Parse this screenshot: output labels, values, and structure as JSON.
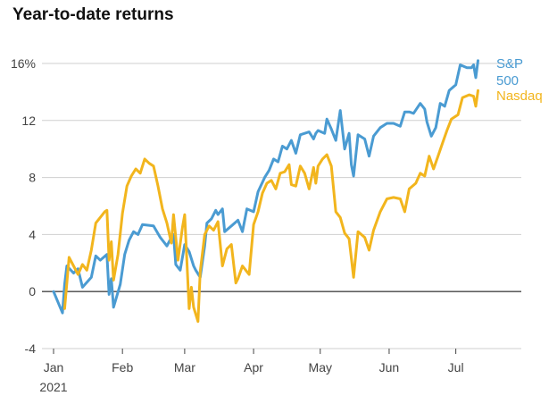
{
  "chart_data": {
    "type": "line",
    "title": "Year-to-date returns",
    "xlabel": "",
    "ylabel": "",
    "ylim": [
      -4,
      16
    ],
    "y_ticks": [
      {
        "value": 16,
        "label": "16%"
      },
      {
        "value": 12,
        "label": "12"
      },
      {
        "value": 8,
        "label": "8"
      },
      {
        "value": 4,
        "label": "4"
      },
      {
        "value": 0,
        "label": "0"
      },
      {
        "value": -4,
        "label": "-4"
      }
    ],
    "x_range": [
      "2021-01-01",
      "2021-07-14"
    ],
    "x_ticks": [
      {
        "date": "2021-01-01",
        "label": "Jan",
        "sublabel": "2021"
      },
      {
        "date": "2021-02-01",
        "label": "Feb"
      },
      {
        "date": "2021-03-01",
        "label": "Mar"
      },
      {
        "date": "2021-04-01",
        "label": "Apr"
      },
      {
        "date": "2021-05-01",
        "label": "May"
      },
      {
        "date": "2021-06-01",
        "label": "Jun"
      },
      {
        "date": "2021-07-01",
        "label": "Jul"
      }
    ],
    "grid": true,
    "colors": {
      "sp500": "#4a9bd2",
      "nasdaq": "#f2b51d",
      "grid": "#cfcfcf",
      "zero": "#444444",
      "axis_text": "#444444"
    },
    "series": [
      {
        "key": "sp500",
        "name": "S&P 500",
        "label_lines": [
          "S&P",
          "500"
        ],
        "color": "#4a9bd2",
        "data": [
          [
            "2021-01-01",
            0.0
          ],
          [
            "2021-01-05",
            -1.5
          ],
          [
            "2021-01-06",
            0.5
          ],
          [
            "2021-01-07",
            1.8
          ],
          [
            "2021-01-10",
            1.3
          ],
          [
            "2021-01-12",
            1.6
          ],
          [
            "2021-01-14",
            0.3
          ],
          [
            "2021-01-18",
            1.0
          ],
          [
            "2021-01-20",
            2.5
          ],
          [
            "2021-01-22",
            2.2
          ],
          [
            "2021-01-25",
            2.6
          ],
          [
            "2021-01-26",
            -0.2
          ],
          [
            "2021-01-27",
            0.9
          ],
          [
            "2021-01-28",
            -1.1
          ],
          [
            "2021-01-31",
            0.5
          ],
          [
            "2021-02-02",
            2.6
          ],
          [
            "2021-02-04",
            3.6
          ],
          [
            "2021-02-06",
            4.2
          ],
          [
            "2021-02-08",
            4.0
          ],
          [
            "2021-02-10",
            4.7
          ],
          [
            "2021-02-15",
            4.6
          ],
          [
            "2021-02-18",
            3.8
          ],
          [
            "2021-02-21",
            3.2
          ],
          [
            "2021-02-23",
            3.8
          ],
          [
            "2021-02-24",
            4.0
          ],
          [
            "2021-02-25",
            1.9
          ],
          [
            "2021-02-27",
            1.5
          ],
          [
            "2021-03-01",
            3.3
          ],
          [
            "2021-03-03",
            2.8
          ],
          [
            "2021-03-05",
            1.8
          ],
          [
            "2021-03-06",
            1.5
          ],
          [
            "2021-03-08",
            1.0
          ],
          [
            "2021-03-10",
            3.2
          ],
          [
            "2021-03-11",
            4.8
          ],
          [
            "2021-03-13",
            5.1
          ],
          [
            "2021-03-15",
            5.7
          ],
          [
            "2021-03-16",
            5.4
          ],
          [
            "2021-03-18",
            5.8
          ],
          [
            "2021-03-19",
            4.2
          ],
          [
            "2021-03-22",
            4.6
          ],
          [
            "2021-03-25",
            5.0
          ],
          [
            "2021-03-27",
            4.2
          ],
          [
            "2021-03-29",
            5.8
          ],
          [
            "2021-04-01",
            5.6
          ],
          [
            "2021-04-03",
            7.0
          ],
          [
            "2021-04-06",
            8.0
          ],
          [
            "2021-04-08",
            8.5
          ],
          [
            "2021-04-10",
            9.3
          ],
          [
            "2021-04-12",
            9.1
          ],
          [
            "2021-04-14",
            10.2
          ],
          [
            "2021-04-16",
            10.0
          ],
          [
            "2021-04-18",
            10.6
          ],
          [
            "2021-04-20",
            9.7
          ],
          [
            "2021-04-22",
            11.0
          ],
          [
            "2021-04-24",
            11.1
          ],
          [
            "2021-04-26",
            11.2
          ],
          [
            "2021-04-28",
            10.7
          ],
          [
            "2021-04-29",
            11.1
          ],
          [
            "2021-04-30",
            11.3
          ],
          [
            "2021-05-03",
            11.1
          ],
          [
            "2021-05-04",
            12.1
          ],
          [
            "2021-05-06",
            11.4
          ],
          [
            "2021-05-08",
            10.6
          ],
          [
            "2021-05-10",
            12.7
          ],
          [
            "2021-05-12",
            10.0
          ],
          [
            "2021-05-14",
            11.1
          ],
          [
            "2021-05-15",
            8.9
          ],
          [
            "2021-05-16",
            8.1
          ],
          [
            "2021-05-18",
            11.0
          ],
          [
            "2021-05-21",
            10.7
          ],
          [
            "2021-05-23",
            9.5
          ],
          [
            "2021-05-25",
            10.9
          ],
          [
            "2021-05-28",
            11.5
          ],
          [
            "2021-05-31",
            11.8
          ],
          [
            "2021-06-03",
            11.8
          ],
          [
            "2021-06-06",
            11.6
          ],
          [
            "2021-06-08",
            12.6
          ],
          [
            "2021-06-10",
            12.6
          ],
          [
            "2021-06-12",
            12.5
          ],
          [
            "2021-06-15",
            13.2
          ],
          [
            "2021-06-17",
            12.8
          ],
          [
            "2021-06-18",
            11.9
          ],
          [
            "2021-06-20",
            10.9
          ],
          [
            "2021-06-22",
            11.5
          ],
          [
            "2021-06-24",
            13.2
          ],
          [
            "2021-06-26",
            13.0
          ],
          [
            "2021-06-28",
            14.1
          ],
          [
            "2021-07-01",
            14.5
          ],
          [
            "2021-07-03",
            15.9
          ],
          [
            "2021-07-06",
            15.7
          ],
          [
            "2021-07-08",
            15.7
          ],
          [
            "2021-07-09",
            15.9
          ],
          [
            "2021-07-10",
            15.0
          ],
          [
            "2021-07-11",
            16.2
          ]
        ]
      },
      {
        "key": "nasdaq",
        "name": "Nasdaq",
        "label_lines": [
          "Nasdaq"
        ],
        "color": "#f2b51d",
        "data": [
          [
            "2021-01-06",
            -1.2
          ],
          [
            "2021-01-08",
            2.4
          ],
          [
            "2021-01-10",
            1.8
          ],
          [
            "2021-01-12",
            1.2
          ],
          [
            "2021-01-14",
            1.9
          ],
          [
            "2021-01-16",
            1.5
          ],
          [
            "2021-01-18",
            2.9
          ],
          [
            "2021-01-20",
            4.8
          ],
          [
            "2021-01-22",
            5.2
          ],
          [
            "2021-01-24",
            5.6
          ],
          [
            "2021-01-25",
            5.7
          ],
          [
            "2021-01-26",
            2.2
          ],
          [
            "2021-01-27",
            3.5
          ],
          [
            "2021-01-28",
            0.8
          ],
          [
            "2021-01-30",
            2.6
          ],
          [
            "2021-02-01",
            5.5
          ],
          [
            "2021-02-03",
            7.4
          ],
          [
            "2021-02-05",
            8.1
          ],
          [
            "2021-02-07",
            8.6
          ],
          [
            "2021-02-09",
            8.3
          ],
          [
            "2021-02-11",
            9.3
          ],
          [
            "2021-02-13",
            9.0
          ],
          [
            "2021-02-15",
            8.8
          ],
          [
            "2021-02-17",
            7.4
          ],
          [
            "2021-02-19",
            5.8
          ],
          [
            "2021-02-21",
            4.8
          ],
          [
            "2021-02-23",
            3.4
          ],
          [
            "2021-02-24",
            5.4
          ],
          [
            "2021-02-26",
            2.2
          ],
          [
            "2021-02-28",
            4.5
          ],
          [
            "2021-03-01",
            5.4
          ],
          [
            "2021-03-03",
            -1.2
          ],
          [
            "2021-03-04",
            0.3
          ],
          [
            "2021-03-05",
            -1.1
          ],
          [
            "2021-03-07",
            -2.1
          ],
          [
            "2021-03-08",
            1.4
          ],
          [
            "2021-03-10",
            4.0
          ],
          [
            "2021-03-12",
            4.6
          ],
          [
            "2021-03-14",
            4.3
          ],
          [
            "2021-03-16",
            4.9
          ],
          [
            "2021-03-18",
            1.8
          ],
          [
            "2021-03-20",
            3.0
          ],
          [
            "2021-03-22",
            3.3
          ],
          [
            "2021-03-24",
            0.6
          ],
          [
            "2021-03-25",
            0.9
          ],
          [
            "2021-03-27",
            1.8
          ],
          [
            "2021-03-29",
            1.4
          ],
          [
            "2021-03-30",
            1.2
          ],
          [
            "2021-04-01",
            4.7
          ],
          [
            "2021-04-03",
            5.6
          ],
          [
            "2021-04-05",
            6.9
          ],
          [
            "2021-04-07",
            7.6
          ],
          [
            "2021-04-09",
            7.8
          ],
          [
            "2021-04-11",
            7.2
          ],
          [
            "2021-04-13",
            8.3
          ],
          [
            "2021-04-15",
            8.4
          ],
          [
            "2021-04-17",
            8.9
          ],
          [
            "2021-04-18",
            7.5
          ],
          [
            "2021-04-20",
            7.4
          ],
          [
            "2021-04-22",
            8.8
          ],
          [
            "2021-04-24",
            8.3
          ],
          [
            "2021-04-26",
            7.2
          ],
          [
            "2021-04-28",
            8.7
          ],
          [
            "2021-04-29",
            7.6
          ],
          [
            "2021-04-30",
            8.8
          ],
          [
            "2021-05-02",
            9.3
          ],
          [
            "2021-05-04",
            9.6
          ],
          [
            "2021-05-06",
            8.8
          ],
          [
            "2021-05-08",
            5.6
          ],
          [
            "2021-05-10",
            5.2
          ],
          [
            "2021-05-12",
            4.1
          ],
          [
            "2021-05-14",
            3.7
          ],
          [
            "2021-05-16",
            1.0
          ],
          [
            "2021-05-18",
            4.2
          ],
          [
            "2021-05-21",
            3.8
          ],
          [
            "2021-05-23",
            2.9
          ],
          [
            "2021-05-25",
            4.3
          ],
          [
            "2021-05-28",
            5.6
          ],
          [
            "2021-05-31",
            6.5
          ],
          [
            "2021-06-03",
            6.6
          ],
          [
            "2021-06-06",
            6.5
          ],
          [
            "2021-06-08",
            5.6
          ],
          [
            "2021-06-10",
            7.2
          ],
          [
            "2021-06-13",
            7.6
          ],
          [
            "2021-06-15",
            8.3
          ],
          [
            "2021-06-17",
            8.1
          ],
          [
            "2021-06-19",
            9.5
          ],
          [
            "2021-06-21",
            8.6
          ],
          [
            "2021-06-23",
            9.5
          ],
          [
            "2021-06-25",
            10.4
          ],
          [
            "2021-06-27",
            11.3
          ],
          [
            "2021-06-29",
            12.1
          ],
          [
            "2021-07-02",
            12.4
          ],
          [
            "2021-07-04",
            13.6
          ],
          [
            "2021-07-07",
            13.8
          ],
          [
            "2021-07-09",
            13.7
          ],
          [
            "2021-07-10",
            13.0
          ],
          [
            "2021-07-11",
            14.1
          ]
        ]
      }
    ]
  }
}
